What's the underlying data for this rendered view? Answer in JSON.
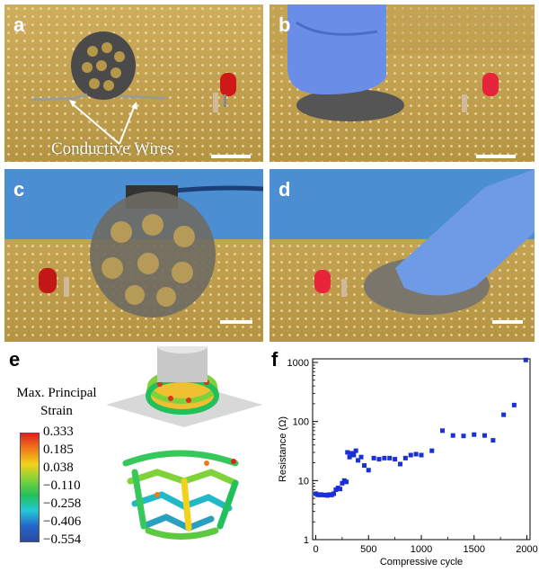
{
  "panels": {
    "a": {
      "label": "a",
      "annotation": "Conductive Wires"
    },
    "b": {
      "label": "b"
    },
    "c": {
      "label": "c"
    },
    "d": {
      "label": "d"
    },
    "e": {
      "label": "e",
      "legend_title_line1": "Max. Principal",
      "legend_title_line2": "Strain",
      "colorbar_ticks": [
        "0.333",
        "0.185",
        "0.038",
        "−0.110",
        "−0.258",
        "−0.406",
        "−0.554"
      ],
      "colorbar_colors": [
        "#e0201c",
        "#f07a18",
        "#f2d21c",
        "#7fd23a",
        "#22c05a",
        "#23c8d8",
        "#2565c8",
        "#2a4aa0"
      ]
    },
    "f": {
      "label": "f"
    }
  },
  "chart_data": {
    "type": "scatter",
    "xlabel": "Compressive cycle",
    "ylabel": "Resistance (Ω)",
    "xlim": [
      -30,
      2030
    ],
    "ylim": [
      1,
      1150
    ],
    "y_scale": "log",
    "x_ticks": [
      0,
      500,
      1000,
      1500,
      2000
    ],
    "y_ticks": [
      1,
      10,
      100,
      1000
    ],
    "marker_color": "#1a2fd6",
    "series": [
      {
        "x": [
          0,
          15,
          30,
          50,
          70,
          90,
          110,
          130,
          150,
          170,
          190,
          210,
          230,
          250,
          270,
          290,
          300,
          320,
          340,
          360,
          380,
          400,
          430,
          460,
          500,
          550,
          600,
          650,
          700,
          750,
          800,
          850,
          900,
          950,
          1000,
          1100,
          1200,
          1300,
          1400,
          1500,
          1600,
          1680,
          1780,
          1880,
          1990
        ],
        "y": [
          6,
          5.8,
          5.7,
          5.8,
          5.7,
          5.7,
          5.6,
          5.8,
          5.7,
          6.0,
          7.0,
          7.5,
          7.2,
          9.0,
          10,
          9.5,
          30,
          25,
          29,
          27,
          32,
          22,
          25,
          18,
          15,
          24,
          23,
          24,
          24,
          23,
          19,
          24,
          27,
          28,
          27,
          32,
          70,
          58,
          57,
          60,
          58,
          48,
          130,
          190,
          1100
        ]
      }
    ]
  }
}
